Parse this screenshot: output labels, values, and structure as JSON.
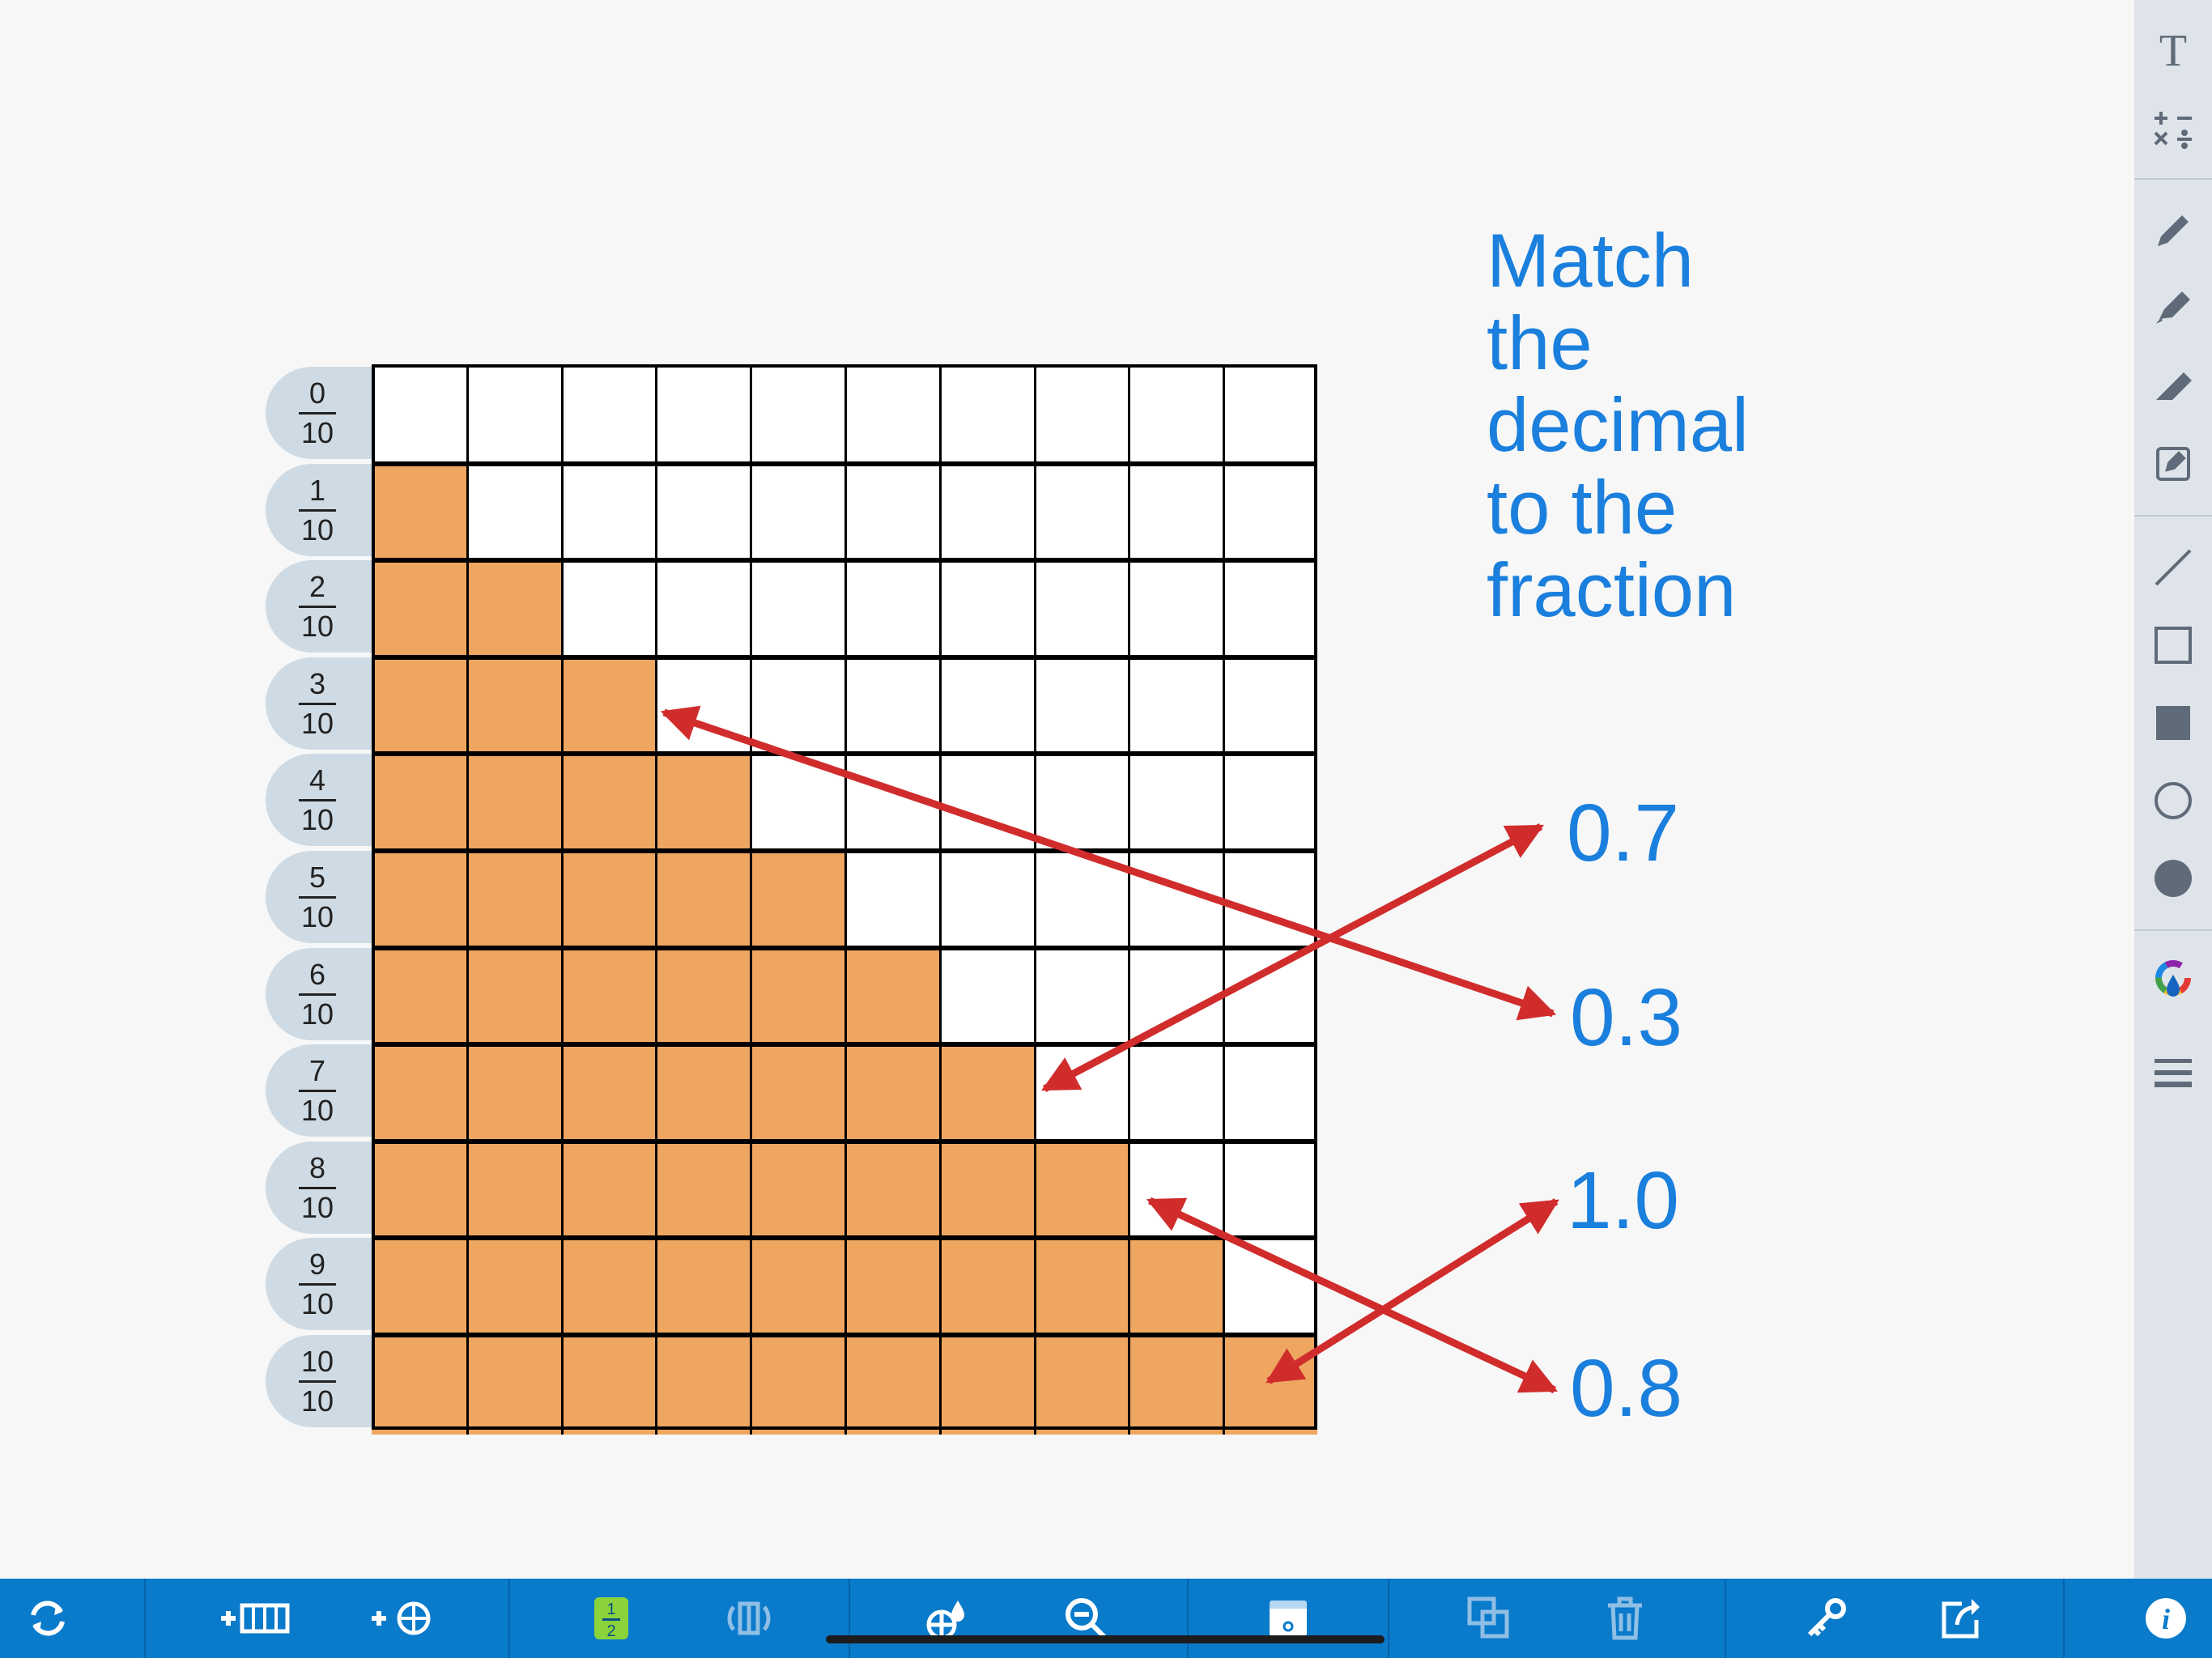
{
  "instruction": [
    "Match",
    "the",
    "decimal",
    "to the",
    "fraction"
  ],
  "fractions": [
    {
      "num": "0",
      "den": "10",
      "filled": 0
    },
    {
      "num": "1",
      "den": "10",
      "filled": 1
    },
    {
      "num": "2",
      "den": "10",
      "filled": 2
    },
    {
      "num": "3",
      "den": "10",
      "filled": 3
    },
    {
      "num": "4",
      "den": "10",
      "filled": 4
    },
    {
      "num": "5",
      "den": "10",
      "filled": 5
    },
    {
      "num": "6",
      "den": "10",
      "filled": 6
    },
    {
      "num": "7",
      "den": "10",
      "filled": 7
    },
    {
      "num": "8",
      "den": "10",
      "filled": 8
    },
    {
      "num": "9",
      "den": "10",
      "filled": 9
    },
    {
      "num": "10",
      "den": "10",
      "filled": 10
    }
  ],
  "decimals": [
    "0.7",
    "0.3",
    "1.0",
    "0.8"
  ],
  "colors": {
    "fill": "#eea660",
    "text_blue": "#1a7fdd",
    "arrow_red": "#d12c2c",
    "toolbar_blue": "#0a7acb",
    "tab_bg": "#cfdbe4"
  },
  "right_toolbar": [
    "text-icon",
    "math-operations-icon",
    "pen-icon",
    "highlighter-icon",
    "eraser-icon",
    "note-icon",
    "line-icon",
    "rectangle-outline-icon",
    "rectangle-filled-icon",
    "circle-outline-icon",
    "circle-filled-icon",
    "color-picker-icon",
    "line-weight-icon"
  ],
  "bottom_toolbar": [
    "refresh-icon",
    "add-tenths-bar-icon",
    "add-hundredths-icon",
    "fraction-label-icon",
    "flip-icon",
    "fill-color-icon",
    "zoom-out-icon",
    "hide-icon",
    "duplicate-icon",
    "delete-icon",
    "key-icon",
    "share-icon",
    "info-icon"
  ],
  "bottom_toolbar_fraction_badge": {
    "num": "1",
    "den": "2"
  }
}
